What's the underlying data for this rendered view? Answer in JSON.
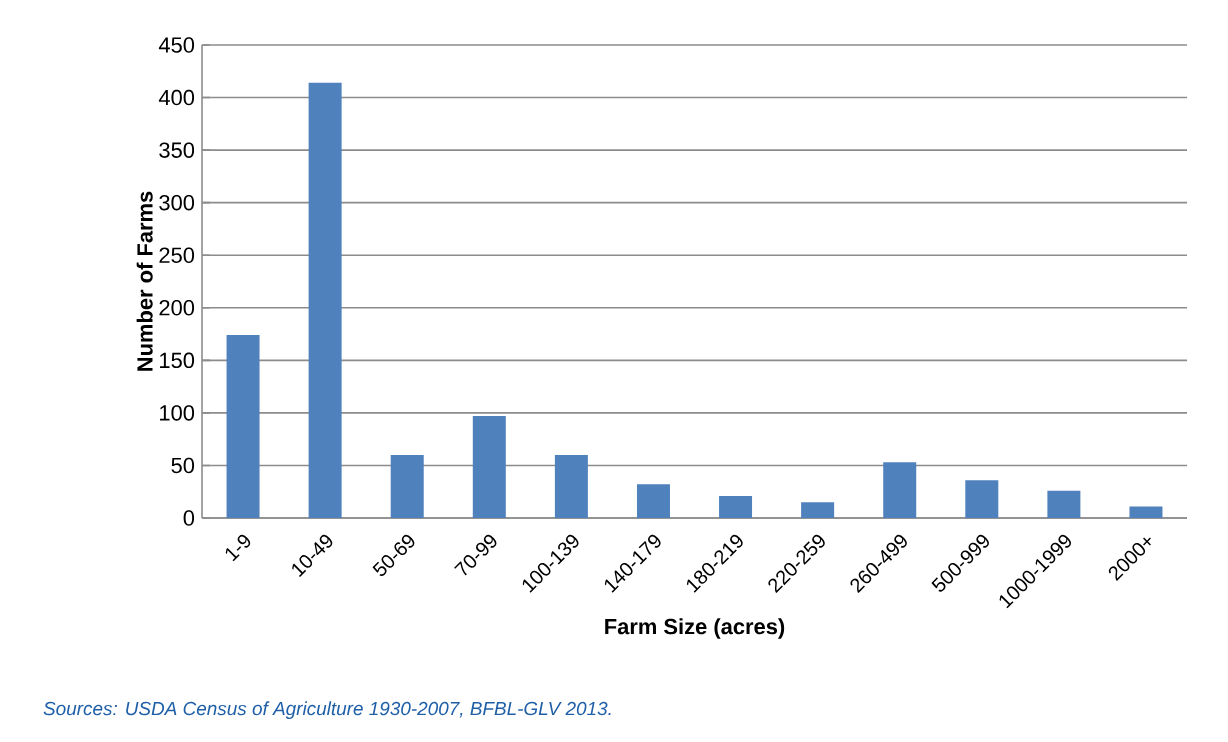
{
  "chart_data": {
    "type": "bar",
    "categories": [
      "1-9",
      "10-49",
      "50-69",
      "70-99",
      "100-139",
      "140-179",
      "180-219",
      "220-259",
      "260-499",
      "500-999",
      "1000-1999",
      "2000+"
    ],
    "values": [
      174,
      414,
      60,
      97,
      60,
      32,
      21,
      15,
      53,
      36,
      26,
      11
    ],
    "color": "#4f81bd",
    "xlabel": "Farm Size (acres)",
    "ylabel": "Number of Farms",
    "ylim": [
      0,
      450
    ],
    "yticks": [
      0,
      50,
      100,
      150,
      200,
      250,
      300,
      350,
      400,
      450
    ],
    "grid": "y",
    "annotations": [
      "Sources: USDA Census of Agriculture 1930-2007, BFBL-GLV 2013."
    ]
  }
}
